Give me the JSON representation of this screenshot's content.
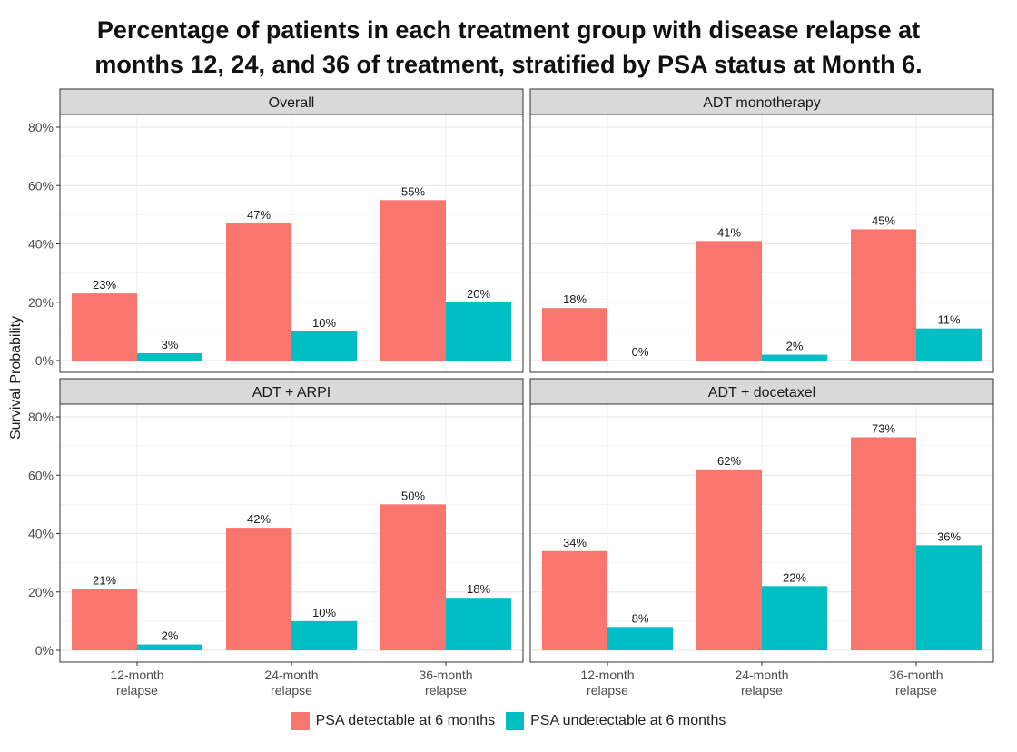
{
  "title_lines": [
    "Percentage of patients in each treatment group with disease relapse at",
    "months 12, 24, and 36 of treatment, stratified by PSA status at Month 6."
  ],
  "chart_data": {
    "type": "bar",
    "title": "Percentage of patients in each treatment group with disease relapse at months 12, 24, and 36 of treatment, stratified by PSA status at Month 6.",
    "ylabel": "Survival Probability",
    "xlabel": "",
    "ylim": [
      0,
      0.8
    ],
    "yticks": [
      "0%",
      "20%",
      "40%",
      "60%",
      "80%"
    ],
    "ytick_values": [
      0,
      0.2,
      0.4,
      0.6,
      0.8
    ],
    "categories": [
      "12-month relapse",
      "24-month relapse",
      "36-month relapse"
    ],
    "category_lines": [
      [
        "12-month",
        "relapse"
      ],
      [
        "24-month",
        "relapse"
      ],
      [
        "36-month",
        "relapse"
      ]
    ],
    "grid": true,
    "legend_position": "bottom",
    "series_names": [
      "PSA detectable at 6 months",
      "PSA undetectable at 6 months"
    ],
    "colors": {
      "detectable": "#F8766D",
      "undetectable": "#00BFC4"
    },
    "panels": [
      {
        "name": "Overall",
        "detectable": [
          0.23,
          0.47,
          0.55
        ],
        "undetectable": [
          0.025,
          0.1,
          0.2
        ],
        "detectable_labels": [
          "23%",
          "47%",
          "55%"
        ],
        "undetectable_labels": [
          "3%",
          "10%",
          "20%"
        ]
      },
      {
        "name": "ADT monotherapy",
        "detectable": [
          0.18,
          0.41,
          0.45
        ],
        "undetectable": [
          0.0,
          0.02,
          0.11
        ],
        "detectable_labels": [
          "18%",
          "41%",
          "45%"
        ],
        "undetectable_labels": [
          "0%",
          "2%",
          "11%"
        ]
      },
      {
        "name": "ADT + ARPI",
        "detectable": [
          0.21,
          0.42,
          0.5
        ],
        "undetectable": [
          0.02,
          0.1,
          0.18
        ],
        "detectable_labels": [
          "21%",
          "42%",
          "50%"
        ],
        "undetectable_labels": [
          "2%",
          "10%",
          "18%"
        ]
      },
      {
        "name": "ADT + docetaxel",
        "detectable": [
          0.34,
          0.62,
          0.73
        ],
        "undetectable": [
          0.08,
          0.22,
          0.36
        ],
        "detectable_labels": [
          "34%",
          "62%",
          "73%"
        ],
        "undetectable_labels": [
          "8%",
          "22%",
          "36%"
        ]
      }
    ]
  }
}
